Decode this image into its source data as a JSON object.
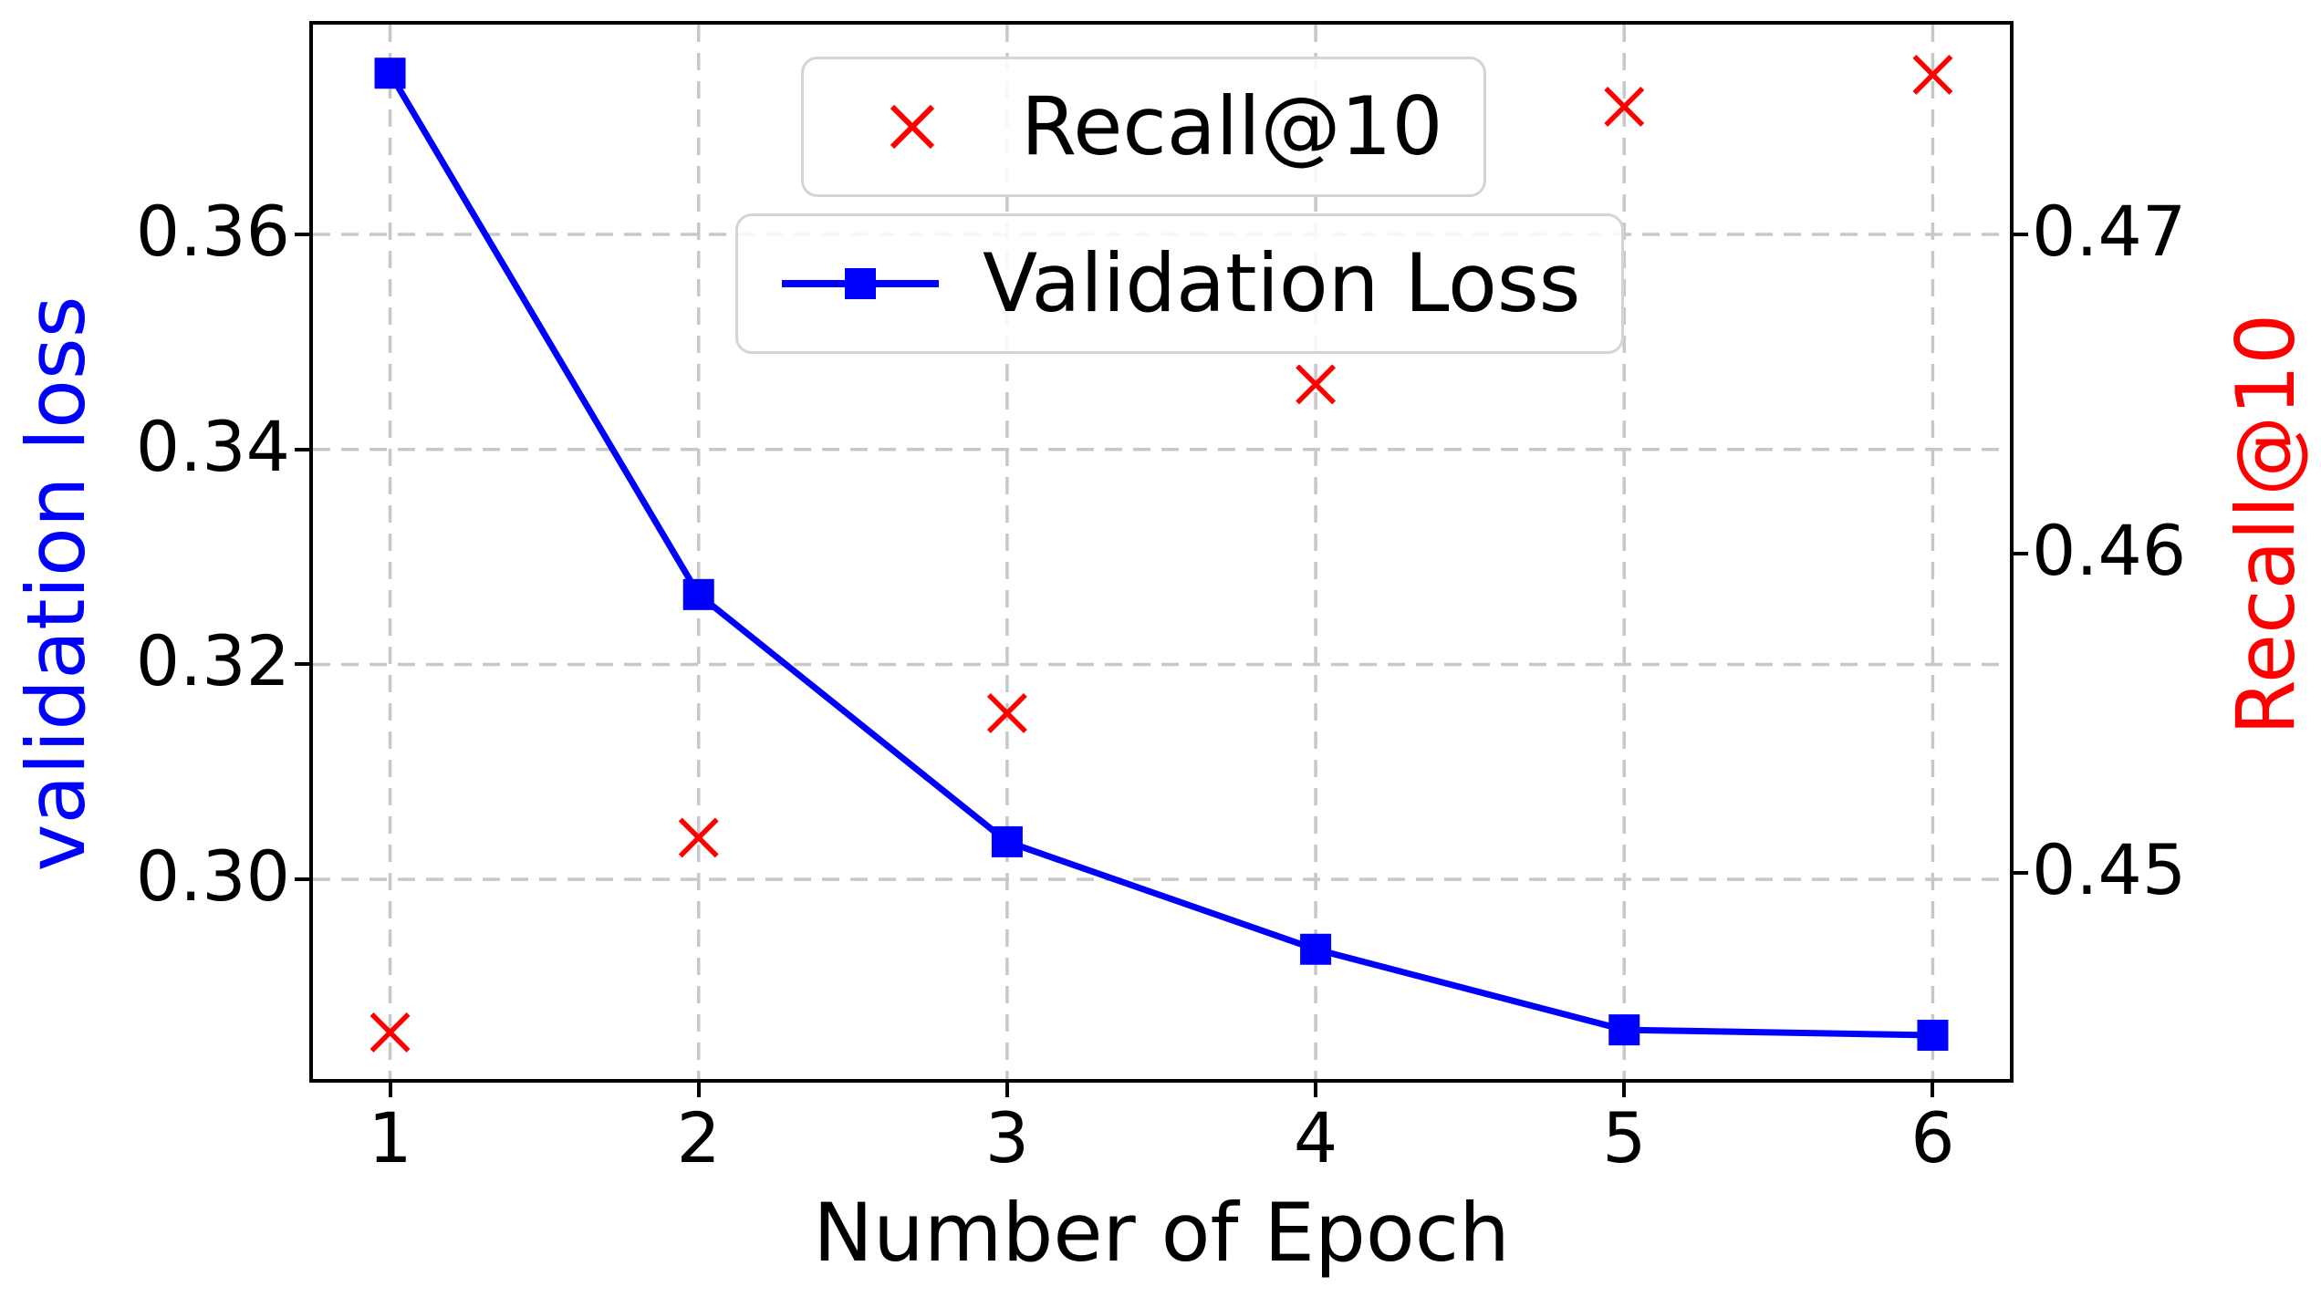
{
  "colors": {
    "loss_series": "#0000ff",
    "recall_series": "#ff0000",
    "grid": "#c8c8c8",
    "axes": "#000000",
    "legend_border": "#d4d4d4"
  },
  "chart_data": {
    "type": "line",
    "x": [
      1,
      2,
      3,
      4,
      5,
      6
    ],
    "xlabel": "Number of Epoch",
    "ylabel_left": "validation loss",
    "ylabel_right": "Recall@10",
    "xlim": [
      0.75,
      6.25
    ],
    "ylim_left": [
      0.28143,
      0.37952
    ],
    "ylim_right": [
      0.44354,
      0.47657
    ],
    "xtick_labels": [
      "1",
      "2",
      "3",
      "4",
      "5",
      "6"
    ],
    "yticks_left": [
      0.36,
      0.34,
      0.32,
      0.3
    ],
    "ytick_left_labels": [
      "0.36",
      "0.34",
      "0.32",
      "0.30"
    ],
    "yticks_right": [
      0.47,
      0.46,
      0.45
    ],
    "ytick_right_labels": [
      "0.47",
      "0.46",
      "0.45"
    ],
    "grid": "dashed, lightgray, x-gridlines at epochs and y-gridlines at left ticks, behind data",
    "legend_position": "two separate boxes, upper center",
    "series": [
      {
        "name": "Validation Loss",
        "axis": "left",
        "color": "#0000ff",
        "marker": "square",
        "line": true,
        "values": [
          0.375,
          0.3265,
          0.3035,
          0.2935,
          0.286,
          0.2855
        ]
      },
      {
        "name": "Recall@10",
        "axis": "right",
        "color": "#ff0000",
        "marker": "x",
        "line": false,
        "values": [
          0.445,
          0.4511,
          0.455,
          0.4653,
          0.474,
          0.475
        ]
      }
    ]
  },
  "legend": {
    "recall_label": "Recall@10",
    "loss_label": "Validation Loss"
  }
}
